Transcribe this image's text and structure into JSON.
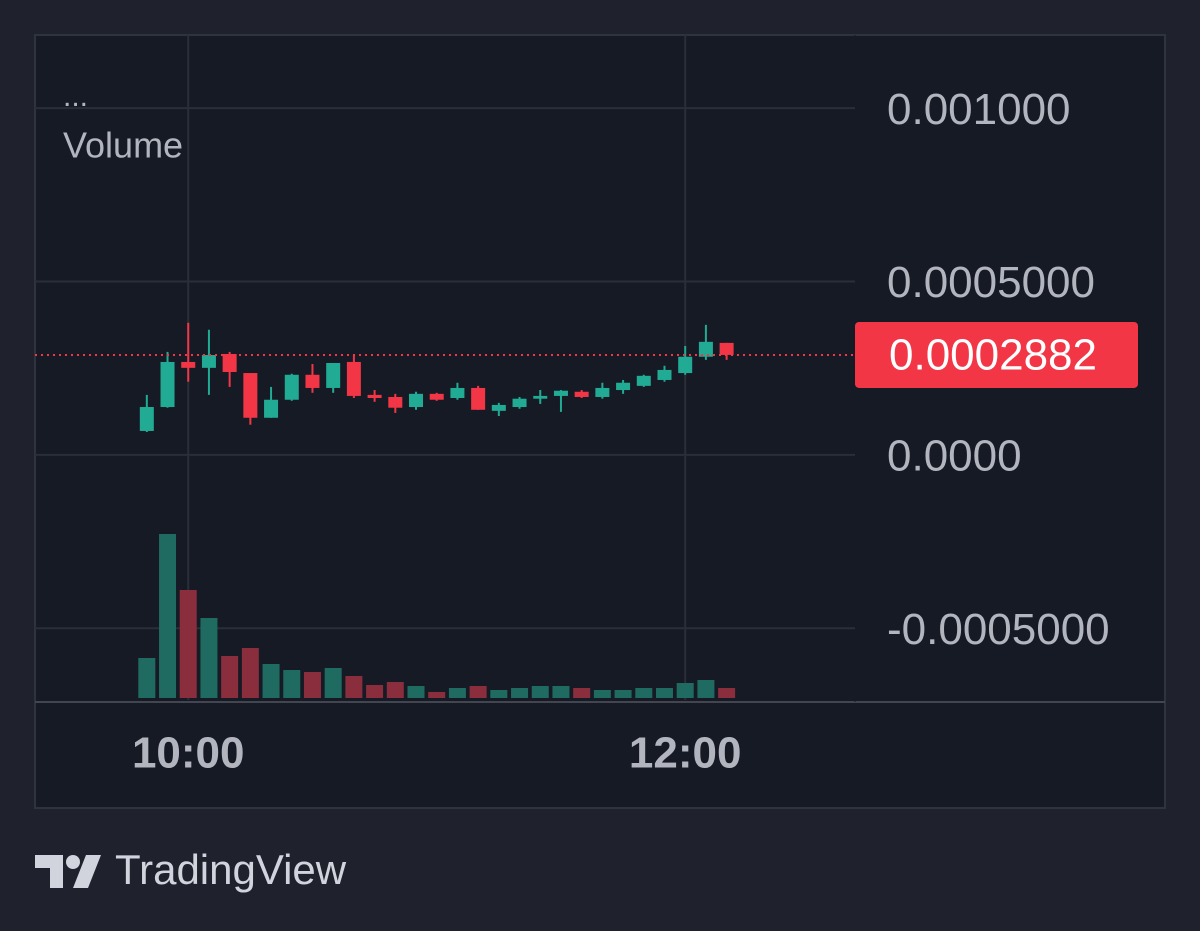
{
  "chart_data": {
    "type": "candlestick",
    "indicator_menu": "...",
    "indicator_name": "Volume",
    "x": [
      590,
      595,
      600,
      605,
      610,
      615,
      620,
      625,
      630,
      635,
      640,
      645,
      650,
      655,
      660,
      665,
      670,
      675,
      680,
      685,
      690,
      695,
      700,
      705,
      710,
      715,
      720,
      725,
      730
    ],
    "open": [
      6.9e-05,
      0.000138,
      0.000268,
      0.000251,
      0.000291,
      0.000236,
      0.000107,
      0.000159,
      0.000231,
      0.000193,
      0.000268,
      0.000173,
      0.000167,
      0.000138,
      0.000176,
      0.000164,
      0.000193,
      0.000127,
      0.000138,
      0.000162,
      0.00017,
      0.000182,
      0.000167,
      0.000187,
      0.000199,
      0.000216,
      0.000236,
      0.000283,
      0.000323
    ],
    "high": [
      0.000173,
      0.000297,
      0.000381,
      0.000361,
      0.000297,
      0.000236,
      0.000196,
      0.000234,
      0.000262,
      0.000265,
      0.000288,
      0.000187,
      0.000176,
      0.000182,
      0.000179,
      0.000208,
      0.000199,
      0.00015,
      0.000167,
      0.000187,
      0.000187,
      0.000187,
      0.000208,
      0.000216,
      0.000231,
      0.000257,
      0.000314,
      0.000375,
      0.000323
    ],
    "low": [
      6.6e-05,
      0.000136,
      0.000211,
      0.000173,
      0.000196,
      8.7e-05,
      0.000107,
      0.000156,
      0.000179,
      0.000179,
      0.000164,
      0.000153,
      0.000121,
      0.00013,
      0.000156,
      0.000159,
      0.00013,
      0.000112,
      0.000133,
      0.000147,
      0.000124,
      0.000164,
      0.000162,
      0.000176,
      0.000196,
      0.000211,
      0.000231,
      0.000274,
      0.000274
    ],
    "close": [
      0.000138,
      0.000268,
      0.000251,
      0.000288,
      0.000239,
      0.000107,
      0.000159,
      0.000231,
      0.000193,
      0.000265,
      0.00017,
      0.000164,
      0.000136,
      0.000176,
      0.000159,
      0.000193,
      0.00013,
      0.000144,
      0.000162,
      0.00017,
      0.000185,
      0.000167,
      0.000193,
      0.000208,
      0.000228,
      0.000245,
      0.000283,
      0.000326,
      0.0002882
    ],
    "volume": [
      40,
      164,
      108,
      80,
      42,
      50,
      34,
      28,
      26,
      30,
      22,
      13,
      16,
      12,
      6,
      10,
      12,
      8,
      10,
      12,
      12,
      10,
      8,
      8,
      10,
      10,
      15,
      18,
      10
    ],
    "last_price": 0.0002882,
    "up_color": "#22ab94",
    "down_color": "#f23645",
    "volume_up_color": "#1f6b61",
    "volume_down_color": "#8a2e3d",
    "xlim": [
      563,
      761
    ],
    "xticks": [
      {
        "value": 600,
        "label": "10:00"
      },
      {
        "value": 720,
        "label": "12:00"
      }
    ],
    "ylim": [
      -0.000707,
      0.001211
    ],
    "yticks": [
      {
        "value": -0.0005,
        "label": "-0.0005000"
      },
      {
        "value": 0,
        "label": "0.0000"
      },
      {
        "value": 0.0005,
        "label": "0.0005000"
      },
      {
        "value": 0.001,
        "label": "0.001000"
      }
    ],
    "grid": true
  },
  "brand": "TradingView"
}
